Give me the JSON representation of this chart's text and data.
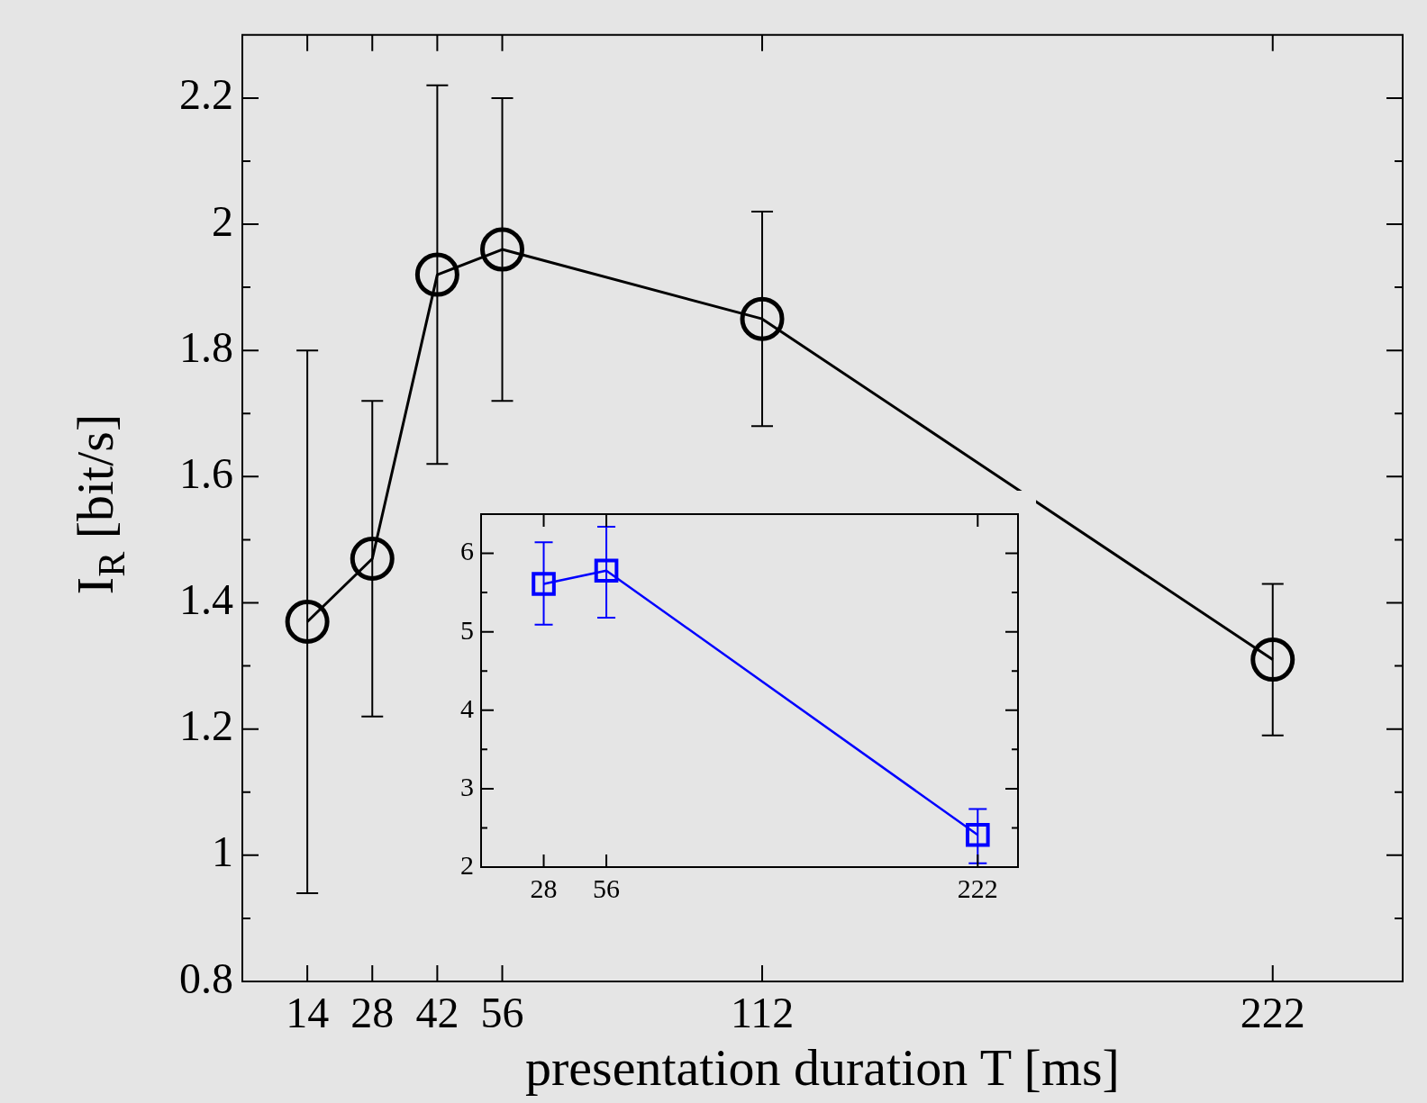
{
  "chart_data": [
    {
      "type": "line",
      "xlabel": "presentation duration T [ms]",
      "ylabel": "I$_{R}$ [bit/s]",
      "xlim": [
        0,
        250
      ],
      "ylim": [
        0.8,
        2.3
      ],
      "xticks": [
        14,
        28,
        42,
        56,
        112,
        222
      ],
      "yticks": [
        0.8,
        {
          "value": 0.9,
          "label": null
        },
        1,
        {
          "value": 1.1,
          "label": null
        },
        1.2,
        {
          "value": 1.3,
          "label": null
        },
        1.4,
        {
          "value": 1.5,
          "label": null
        },
        1.6,
        {
          "value": 1.7,
          "label": null
        },
        1.8,
        {
          "value": 1.9,
          "label": null
        },
        2,
        {
          "value": 2.1,
          "label": null
        },
        2.2
      ],
      "grid": false,
      "legend": false,
      "marker": "circle",
      "line_style": "solid",
      "series": [
        {
          "color": "#000000",
          "x": [
            14,
            28,
            42,
            56,
            112,
            222
          ],
          "values": [
            1.37,
            1.47,
            1.92,
            1.96,
            1.85,
            1.31
          ],
          "errors": [
            [
              0.94,
              1.8
            ],
            [
              1.22,
              1.72
            ],
            [
              1.62,
              2.22
            ],
            [
              1.72,
              2.2
            ],
            [
              1.68,
              2.02
            ],
            [
              1.19,
              1.43
            ]
          ]
        }
      ]
    },
    {
      "type": "line",
      "xlim": [
        0,
        240
      ],
      "ylim": [
        2,
        6.5
      ],
      "xticks": [
        28,
        56,
        222
      ],
      "yticks": [
        2,
        {
          "value": 2.5,
          "label": null
        },
        3,
        {
          "value": 3.5,
          "label": null
        },
        4,
        {
          "value": 4.5,
          "label": null
        },
        5,
        {
          "value": 5.5,
          "label": null
        },
        6
      ],
      "grid": false,
      "legend": false,
      "marker": "square",
      "line_style": "solid",
      "series": [
        {
          "color": "#0000ff",
          "x": [
            28,
            56,
            222
          ],
          "values": [
            5.61,
            5.78,
            2.41
          ],
          "errors": [
            [
              5.09,
              6.14
            ],
            [
              5.18,
              6.34
            ],
            [
              2.05,
              2.74
            ]
          ]
        }
      ]
    }
  ]
}
